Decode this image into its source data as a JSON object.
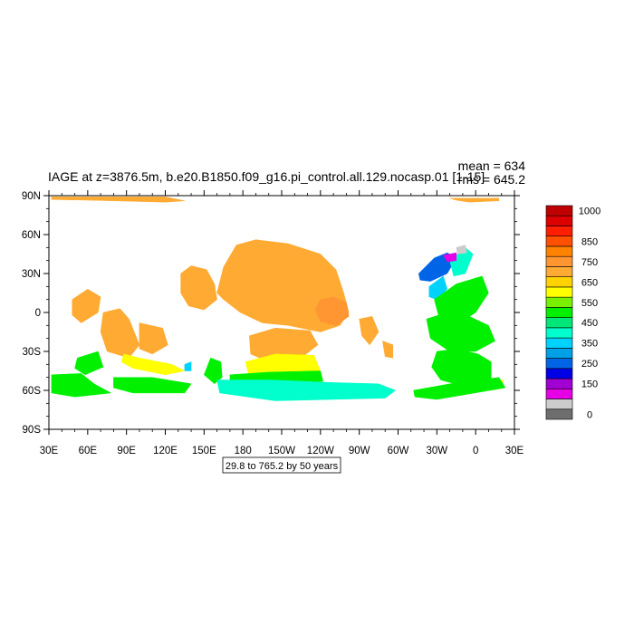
{
  "chart_data": {
    "type": "heatmap",
    "title": "IAGE at z=3876.5m, b.e20.B1850.f09_g16.pi_control.all.129.nocasp.01 [1-15]",
    "stats": {
      "mean": "mean = 634",
      "rms": "rms = 645.2"
    },
    "range_label": "29.8 to 765.2 by 50 years",
    "x_ticks": [
      {
        "lon": 30,
        "label": "30E"
      },
      {
        "lon": 60,
        "label": "60E"
      },
      {
        "lon": 90,
        "label": "90E"
      },
      {
        "lon": 120,
        "label": "120E"
      },
      {
        "lon": 150,
        "label": "150E"
      },
      {
        "lon": 180,
        "label": "180"
      },
      {
        "lon": 210,
        "label": "150W"
      },
      {
        "lon": 240,
        "label": "120W"
      },
      {
        "lon": 270,
        "label": "90W"
      },
      {
        "lon": 300,
        "label": "60W"
      },
      {
        "lon": 330,
        "label": "30W"
      },
      {
        "lon": 360,
        "label": "0"
      },
      {
        "lon": 390,
        "label": "30E"
      }
    ],
    "y_ticks": [
      {
        "lat": 90,
        "label": "90N"
      },
      {
        "lat": 60,
        "label": "60N"
      },
      {
        "lat": 30,
        "label": "30N"
      },
      {
        "lat": 0,
        "label": "0"
      },
      {
        "lat": -30,
        "label": "30S"
      },
      {
        "lat": -60,
        "label": "60S"
      },
      {
        "lat": -90,
        "label": "90S"
      }
    ],
    "xlim": [
      30,
      390
    ],
    "ylim": [
      -90,
      90
    ],
    "colorbar": {
      "colors": [
        "#6e6e6e",
        "#cccccc",
        "#e600e6",
        "#a000d2",
        "#0000e6",
        "#0064e6",
        "#00a0e6",
        "#00d2ff",
        "#00ffcc",
        "#00e678",
        "#00f000",
        "#78f000",
        "#ffff00",
        "#ffd200",
        "#ffaa32",
        "#ff9632",
        "#ff8200",
        "#ff5000",
        "#ff1e00",
        "#dc0000",
        "#be0000"
      ],
      "labels": [
        {
          "index": 0,
          "text": "0"
        },
        {
          "index": 3,
          "text": "150"
        },
        {
          "index": 5,
          "text": "250"
        },
        {
          "index": 7,
          "text": "350"
        },
        {
          "index": 9,
          "text": "450"
        },
        {
          "index": 11,
          "text": "550"
        },
        {
          "index": 13,
          "text": "650"
        },
        {
          "index": 15,
          "text": "750"
        },
        {
          "index": 17,
          "text": "850"
        },
        {
          "index": 20,
          "text": "1000"
        }
      ]
    },
    "regions": [
      {
        "name": "arctic-strip-west",
        "c": "#ffaa32",
        "pts": [
          [
            32,
            89
          ],
          [
            120,
            89
          ],
          [
            135,
            86
          ],
          [
            120,
            85
          ],
          [
            60,
            86.5
          ],
          [
            32,
            87
          ]
        ]
      },
      {
        "name": "arctic-strip-east",
        "c": "#ffaa32",
        "pts": [
          [
            340,
            88
          ],
          [
            378,
            88
          ],
          [
            378,
            86
          ],
          [
            355,
            85
          ],
          [
            345,
            86.5
          ]
        ]
      },
      {
        "name": "north-pacific",
        "c": "#ffaa32",
        "pts": [
          [
            160,
            15
          ],
          [
            165,
            35
          ],
          [
            175,
            52
          ],
          [
            190,
            56
          ],
          [
            215,
            53
          ],
          [
            240,
            45
          ],
          [
            252,
            33
          ],
          [
            258,
            15
          ],
          [
            262,
            0
          ],
          [
            255,
            -10
          ],
          [
            240,
            -15
          ],
          [
            215,
            -10
          ],
          [
            195,
            -8
          ],
          [
            178,
            0
          ],
          [
            165,
            10
          ]
        ]
      },
      {
        "name": "nw-pacific",
        "c": "#ffaa32",
        "pts": [
          [
            132,
            30
          ],
          [
            140,
            36
          ],
          [
            152,
            33
          ],
          [
            158,
            22
          ],
          [
            160,
            10
          ],
          [
            150,
            2
          ],
          [
            138,
            5
          ],
          [
            132,
            15
          ]
        ]
      },
      {
        "name": "east-pacific-darker",
        "c": "#ff9632",
        "pts": [
          [
            240,
            10
          ],
          [
            250,
            12
          ],
          [
            260,
            8
          ],
          [
            262,
            -3
          ],
          [
            252,
            -10
          ],
          [
            240,
            -7
          ],
          [
            236,
            2
          ]
        ]
      },
      {
        "name": "south-pacific-orange",
        "c": "#ffaa32",
        "pts": [
          [
            185,
            -18
          ],
          [
            205,
            -12
          ],
          [
            232,
            -14
          ],
          [
            238,
            -25
          ],
          [
            225,
            -35
          ],
          [
            200,
            -38
          ],
          [
            186,
            -32
          ]
        ]
      },
      {
        "name": "south-pacific-yellow",
        "c": "#ffff00",
        "pts": [
          [
            182,
            -38
          ],
          [
            205,
            -32
          ],
          [
            235,
            -33
          ],
          [
            240,
            -45
          ],
          [
            215,
            -50
          ],
          [
            185,
            -50
          ]
        ]
      },
      {
        "name": "south-pacific-green",
        "c": "#00f000",
        "pts": [
          [
            170,
            -48
          ],
          [
            200,
            -46
          ],
          [
            240,
            -45
          ],
          [
            242,
            -53
          ],
          [
            200,
            -57
          ],
          [
            170,
            -56
          ]
        ]
      },
      {
        "name": "indian-ocean-orange",
        "c": "#ffaa32",
        "pts": [
          [
            72,
            0
          ],
          [
            85,
            3
          ],
          [
            92,
            -5
          ],
          [
            100,
            -25
          ],
          [
            92,
            -35
          ],
          [
            75,
            -30
          ],
          [
            70,
            -15
          ]
        ]
      },
      {
        "name": "wharton-basin",
        "c": "#ffaa32",
        "pts": [
          [
            100,
            -8
          ],
          [
            118,
            -12
          ],
          [
            122,
            -25
          ],
          [
            110,
            -32
          ],
          [
            100,
            -28
          ]
        ]
      },
      {
        "name": "arabian-sea",
        "c": "#ffaa32",
        "pts": [
          [
            48,
            10
          ],
          [
            60,
            18
          ],
          [
            70,
            12
          ],
          [
            68,
            0
          ],
          [
            55,
            -8
          ],
          [
            48,
            -2
          ]
        ]
      },
      {
        "name": "indian-south-yellow",
        "c": "#ffff00",
        "pts": [
          [
            88,
            -32
          ],
          [
            100,
            -35
          ],
          [
            125,
            -40
          ],
          [
            135,
            -45
          ],
          [
            120,
            -48
          ],
          [
            95,
            -43
          ],
          [
            86,
            -38
          ]
        ]
      },
      {
        "name": "sw-indian-green",
        "c": "#00f000",
        "pts": [
          [
            52,
            -35
          ],
          [
            68,
            -30
          ],
          [
            72,
            -42
          ],
          [
            58,
            -48
          ],
          [
            50,
            -43
          ]
        ]
      },
      {
        "name": "southern-ocean-west",
        "c": "#00f000",
        "pts": [
          [
            32,
            -48
          ],
          [
            55,
            -47
          ],
          [
            65,
            -55
          ],
          [
            78,
            -62
          ],
          [
            50,
            -65
          ],
          [
            32,
            -62
          ]
        ]
      },
      {
        "name": "south-indian-green",
        "c": "#00f000",
        "pts": [
          [
            80,
            -50
          ],
          [
            110,
            -50
          ],
          [
            140,
            -55
          ],
          [
            135,
            -62
          ],
          [
            95,
            -62
          ],
          [
            80,
            -58
          ]
        ]
      },
      {
        "name": "tasman-green",
        "c": "#00f000",
        "pts": [
          [
            155,
            -35
          ],
          [
            163,
            -38
          ],
          [
            164,
            -50
          ],
          [
            158,
            -55
          ],
          [
            150,
            -48
          ]
        ]
      },
      {
        "name": "pacific-antarctic-cyan",
        "c": "#00ffcc",
        "pts": [
          [
            160,
            -52
          ],
          [
            200,
            -52
          ],
          [
            250,
            -54
          ],
          [
            285,
            -55
          ],
          [
            298,
            -60
          ],
          [
            290,
            -66
          ],
          [
            250,
            -67
          ],
          [
            205,
            -68
          ],
          [
            162,
            -62
          ]
        ]
      },
      {
        "name": "south-atlantic-green",
        "c": "#00f000",
        "pts": [
          [
            330,
            -30
          ],
          [
            345,
            -28
          ],
          [
            362,
            -32
          ],
          [
            372,
            -38
          ],
          [
            372,
            -55
          ],
          [
            355,
            -58
          ],
          [
            333,
            -52
          ],
          [
            326,
            -42
          ]
        ]
      },
      {
        "name": "weddell-yellow",
        "c": "#ffff00",
        "pts": [
          [
            325,
            -62
          ],
          [
            345,
            -58
          ],
          [
            365,
            -55
          ],
          [
            382,
            -52
          ],
          [
            378,
            -58
          ],
          [
            345,
            -63
          ],
          [
            326,
            -66
          ]
        ]
      },
      {
        "name": "weddell-green",
        "c": "#00f000",
        "pts": [
          [
            312,
            -60
          ],
          [
            340,
            -55
          ],
          [
            378,
            -50
          ],
          [
            383,
            -58
          ],
          [
            330,
            -67
          ],
          [
            313,
            -65
          ]
        ]
      },
      {
        "name": "north-atlantic-blue",
        "c": "#0064e6",
        "pts": [
          [
            316,
            30
          ],
          [
            328,
            42
          ],
          [
            338,
            46
          ],
          [
            345,
            42
          ],
          [
            338,
            30
          ],
          [
            325,
            24
          ],
          [
            317,
            25
          ]
        ]
      },
      {
        "name": "north-atlantic-cyan",
        "c": "#00ffcc",
        "pts": [
          [
            340,
            40
          ],
          [
            352,
            50
          ],
          [
            358,
            45
          ],
          [
            352,
            30
          ],
          [
            343,
            28
          ]
        ]
      },
      {
        "name": "north-atlantic-light-cyan",
        "c": "#00d2ff",
        "pts": [
          [
            324,
            20
          ],
          [
            335,
            28
          ],
          [
            338,
            18
          ],
          [
            330,
            10
          ],
          [
            324,
            12
          ]
        ]
      },
      {
        "name": "north-atlantic-green",
        "c": "#00f000",
        "pts": [
          [
            328,
            10
          ],
          [
            345,
            22
          ],
          [
            365,
            28
          ],
          [
            370,
            15
          ],
          [
            360,
            0
          ],
          [
            345,
            -10
          ],
          [
            332,
            -5
          ]
        ]
      },
      {
        "name": "equatorial-atlantic-green",
        "c": "#00f000",
        "pts": [
          [
            322,
            -5
          ],
          [
            338,
            0
          ],
          [
            355,
            -3
          ],
          [
            370,
            -10
          ],
          [
            375,
            -22
          ],
          [
            360,
            -30
          ],
          [
            340,
            -30
          ],
          [
            325,
            -20
          ]
        ]
      },
      {
        "name": "labrador-magenta",
        "c": "#e600e6",
        "pts": [
          [
            335,
            44
          ],
          [
            345,
            46
          ],
          [
            345,
            40
          ],
          [
            338,
            39
          ]
        ]
      },
      {
        "name": "nordic-grey",
        "c": "#cccccc",
        "pts": [
          [
            345,
            50
          ],
          [
            352,
            52
          ],
          [
            353,
            46
          ],
          [
            346,
            45
          ]
        ]
      },
      {
        "name": "se-pacific-orange",
        "c": "#ffaa32",
        "pts": [
          [
            270,
            -5
          ],
          [
            280,
            -3
          ],
          [
            285,
            -15
          ],
          [
            278,
            -25
          ],
          [
            272,
            -18
          ]
        ]
      },
      {
        "name": "argentine-orange",
        "c": "#ffaa32",
        "pts": [
          [
            288,
            -22
          ],
          [
            296,
            -25
          ],
          [
            296,
            -35
          ],
          [
            290,
            -34
          ]
        ]
      },
      {
        "name": "indian-light-cyan",
        "c": "#00d2ff",
        "pts": [
          [
            135,
            -40
          ],
          [
            140,
            -38
          ],
          [
            140,
            -45
          ],
          [
            135,
            -45
          ]
        ]
      }
    ]
  }
}
